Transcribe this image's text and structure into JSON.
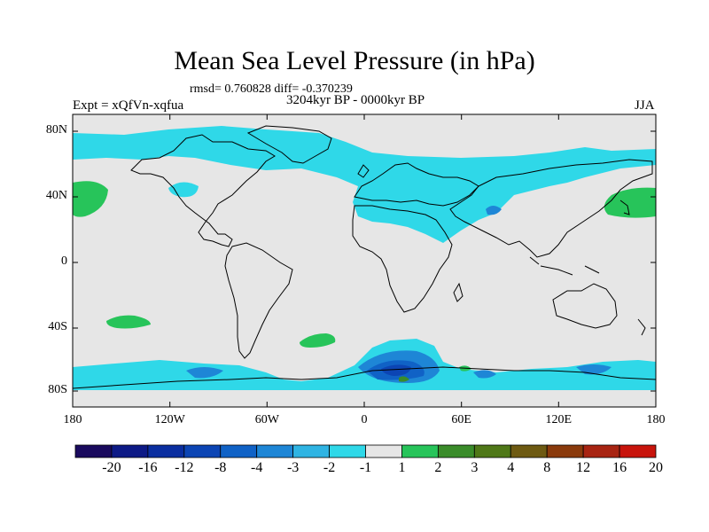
{
  "title": "Mean Sea Level Pressure (in hPa)",
  "stats_line": "rmsd= 0.760828 diff= -0.370239",
  "period": "3204kyr BP - 0000kyr BP",
  "experiment": "Expt = xQfVn-xqfua",
  "season": "JJA",
  "axes": {
    "lat_labels": [
      "80N",
      "40N",
      "0",
      "40S",
      "80S"
    ],
    "lon_labels": [
      "180",
      "120W",
      "60W",
      "0",
      "60E",
      "120E",
      "180"
    ]
  },
  "colorbar": {
    "labels": [
      "-20",
      "-16",
      "-12",
      "-8",
      "-4",
      "-3",
      "-2",
      "-1",
      "1",
      "2",
      "3",
      "4",
      "8",
      "12",
      "16",
      "20"
    ],
    "colors": [
      "#1a0a5e",
      "#0d1a86",
      "#0a2ea0",
      "#0c45b4",
      "#1062c6",
      "#1e86d6",
      "#2fb4e3",
      "#2fd8e8",
      "#e6e6e6",
      "#27c45a",
      "#3a8c2a",
      "#4f7818",
      "#6e5a12",
      "#8a3a0c",
      "#a82412",
      "#c8140c"
    ]
  },
  "map_colors": {
    "ocean": "#e6e6e6",
    "neg_light": "#2fd8e8",
    "neg_mid": "#2fb4e3",
    "neg_strong": "#1e86d6",
    "neg_deep": "#1062c6",
    "neg_deepest": "#0c45b4",
    "pos_light": "#27c45a",
    "pos_dark": "#3a8c2a",
    "coast": "#000000"
  }
}
